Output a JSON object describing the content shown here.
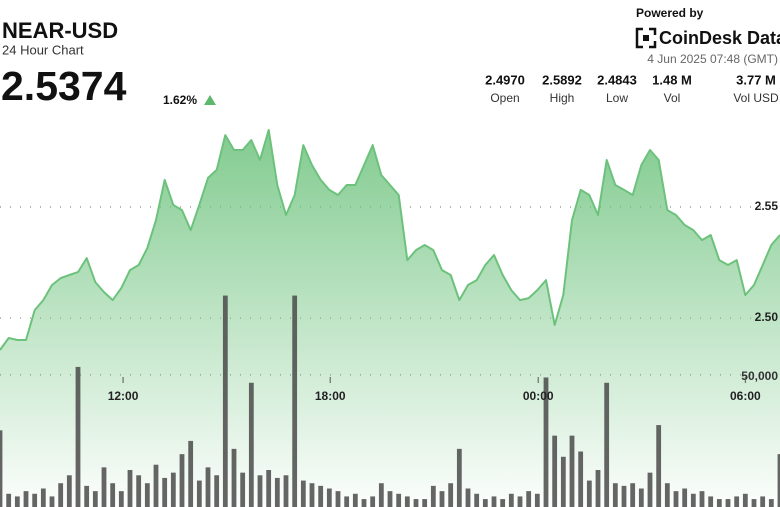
{
  "header": {
    "title": "NEAR-USD",
    "subtitle": "24 Hour Chart",
    "price": "2.5374",
    "change": "1.62%",
    "powered_by": "Powered by",
    "brand": "CoinDesk Data",
    "timestamp": "4 Jun 2025 07:48 (GMT)",
    "stats": [
      {
        "value": "2.4970",
        "label": "Open"
      },
      {
        "value": "2.5892",
        "label": "High"
      },
      {
        "value": "2.4843",
        "label": "Low"
      },
      {
        "value": "1.48 M",
        "label": "Vol"
      },
      {
        "value": "3.77 M",
        "label": "Vol USD"
      }
    ]
  },
  "chart_data": {
    "type": "area",
    "xlim": [
      0,
      90
    ],
    "xticks": [
      {
        "value": 14.2,
        "label": "12:00"
      },
      {
        "value": 38.1,
        "label": "18:00"
      },
      {
        "value": 62.1,
        "label": "00:00"
      },
      {
        "value": 86.0,
        "label": "06:00"
      }
    ],
    "ylim": [
      2.4149,
      2.5982
    ],
    "yticks": [
      {
        "value": 2.5,
        "label": "2.50"
      },
      2.55
    ],
    "y2lim": [
      0,
      154000
    ],
    "y2ticks": [
      {
        "value": 50000,
        "label": "50,000"
      }
    ],
    "grid": true,
    "series": [
      {
        "name": "Price",
        "color": "#6cc27c",
        "values": [
          2.4856,
          2.491,
          2.4901,
          2.4901,
          2.5036,
          2.5081,
          2.5149,
          2.518,
          2.5194,
          2.5207,
          2.527,
          2.5162,
          2.5117,
          2.5081,
          2.5135,
          2.5216,
          2.5239,
          2.5315,
          2.5441,
          2.5622,
          2.5509,
          2.5486,
          2.5396,
          2.5509,
          2.5631,
          2.5667,
          2.5824,
          2.5757,
          2.5757,
          2.5802,
          2.5712,
          2.5847,
          2.5599,
          2.5464,
          2.5554,
          2.5779,
          2.5689,
          2.5622,
          2.5577,
          2.5554,
          2.5599,
          2.5599,
          2.5689,
          2.5779,
          2.5644,
          2.5599,
          2.5554,
          2.5261,
          2.5306,
          2.5329,
          2.5306,
          2.5216,
          2.5194,
          2.5081,
          2.5149,
          2.5171,
          2.5239,
          2.5284,
          2.5194,
          2.5126,
          2.5081,
          2.509,
          2.5126,
          2.5171,
          2.4969,
          2.5104,
          2.5441,
          2.5577,
          2.5554,
          2.5464,
          2.5712,
          2.5599,
          2.5577,
          2.5554,
          2.5689,
          2.5757,
          2.5712,
          2.5486,
          2.5464,
          2.5419,
          2.5396,
          2.5351,
          2.5374,
          2.5261,
          2.5239,
          2.5261,
          2.5104,
          2.5149,
          2.5239,
          2.5329,
          2.5374
        ]
      },
      {
        "name": "Volume",
        "color": "#4a4a4a",
        "axis": "y2",
        "values": [
          29000,
          5000,
          4000,
          6000,
          5000,
          7000,
          4000,
          9000,
          12000,
          53000,
          8000,
          6000,
          15000,
          9000,
          6000,
          14000,
          12000,
          9000,
          16000,
          11000,
          13000,
          20000,
          25000,
          10000,
          15000,
          12000,
          80000,
          22000,
          13000,
          47000,
          12000,
          14000,
          11000,
          12000,
          80000,
          10000,
          9000,
          8000,
          7000,
          6000,
          4000,
          5000,
          3000,
          4000,
          9000,
          6000,
          5000,
          4000,
          3000,
          3000,
          8000,
          6000,
          9000,
          22000,
          7000,
          5000,
          3000,
          4000,
          3000,
          5000,
          4000,
          6000,
          5000,
          49000,
          27000,
          19000,
          27000,
          21000,
          10000,
          14000,
          47000,
          9000,
          8000,
          9000,
          7000,
          13000,
          31000,
          9000,
          6000,
          7000,
          5000,
          6000,
          4000,
          3000,
          3000,
          4000,
          5000,
          3000,
          4000,
          3000,
          20000
        ]
      }
    ]
  }
}
